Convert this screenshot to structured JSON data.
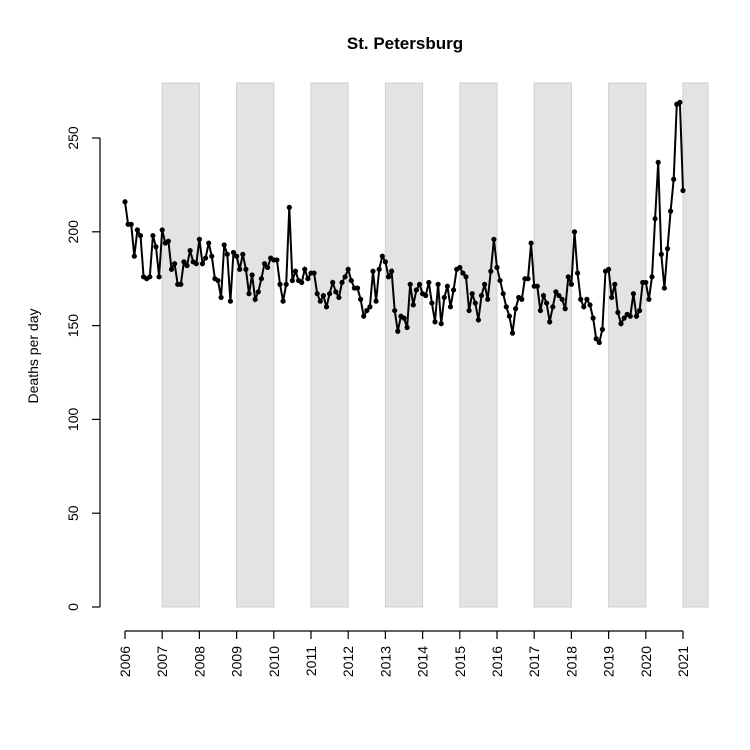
{
  "chart_data": {
    "type": "line",
    "title": "St. Petersburg",
    "xlabel": "",
    "ylabel": "Deaths per day",
    "xlim": [
      2006,
      2021.7
    ],
    "ylim": [
      0,
      270
    ],
    "x_ticks": [
      2006,
      2007,
      2008,
      2009,
      2010,
      2011,
      2012,
      2013,
      2014,
      2015,
      2016,
      2017,
      2018,
      2019,
      2020,
      2021
    ],
    "y_ticks": [
      0,
      50,
      100,
      150,
      200,
      250
    ],
    "shaded_year_bands": [
      [
        2007,
        2008
      ],
      [
        2009,
        2010
      ],
      [
        2011,
        2012
      ],
      [
        2013,
        2014
      ],
      [
        2015,
        2016
      ],
      [
        2017,
        2018
      ],
      [
        2019,
        2020
      ],
      [
        2021,
        2021.7
      ]
    ],
    "band_color": "#e3e3e3",
    "line_color": "#000000",
    "grid": false,
    "x_start": 2006.0,
    "x_step_months": 1,
    "series": [
      {
        "values": [
          216,
          204,
          204,
          187,
          201,
          198,
          176,
          175,
          176,
          198,
          192,
          176,
          201,
          194,
          195,
          180,
          183,
          172,
          172,
          184,
          182,
          190,
          184,
          183,
          196,
          183,
          186,
          194,
          187,
          175,
          174,
          165,
          193,
          188,
          163,
          189,
          187,
          180,
          188,
          180,
          167,
          177,
          164,
          168,
          175,
          183,
          181,
          186,
          185,
          185,
          172,
          163,
          172,
          213,
          174,
          179,
          174,
          173,
          180,
          175,
          178,
          178,
          167,
          163,
          166,
          160,
          167,
          173,
          168,
          165,
          173,
          176,
          180,
          174,
          170,
          170,
          164,
          155,
          158,
          160,
          179,
          163,
          180,
          187,
          184,
          176,
          179,
          158,
          147,
          155,
          154,
          149,
          172,
          161,
          169,
          172,
          167,
          166,
          173,
          162,
          152,
          172,
          151,
          165,
          171,
          160,
          169,
          180,
          181,
          178,
          176,
          158,
          167,
          162,
          153,
          166,
          172,
          164,
          179,
          196,
          181,
          174,
          167,
          160,
          155,
          146,
          159,
          165,
          164,
          175,
          175,
          194,
          171,
          171,
          158,
          166,
          162,
          152,
          160,
          168,
          166,
          164,
          159,
          176,
          172,
          200,
          178,
          164,
          160,
          164,
          161,
          154,
          143,
          141,
          148,
          179,
          180,
          165,
          172,
          157,
          151,
          154,
          156,
          155,
          167,
          155,
          158,
          173,
          173,
          164,
          176,
          207,
          237,
          188,
          170,
          191,
          211,
          228,
          268,
          269,
          222
        ]
      }
    ]
  }
}
